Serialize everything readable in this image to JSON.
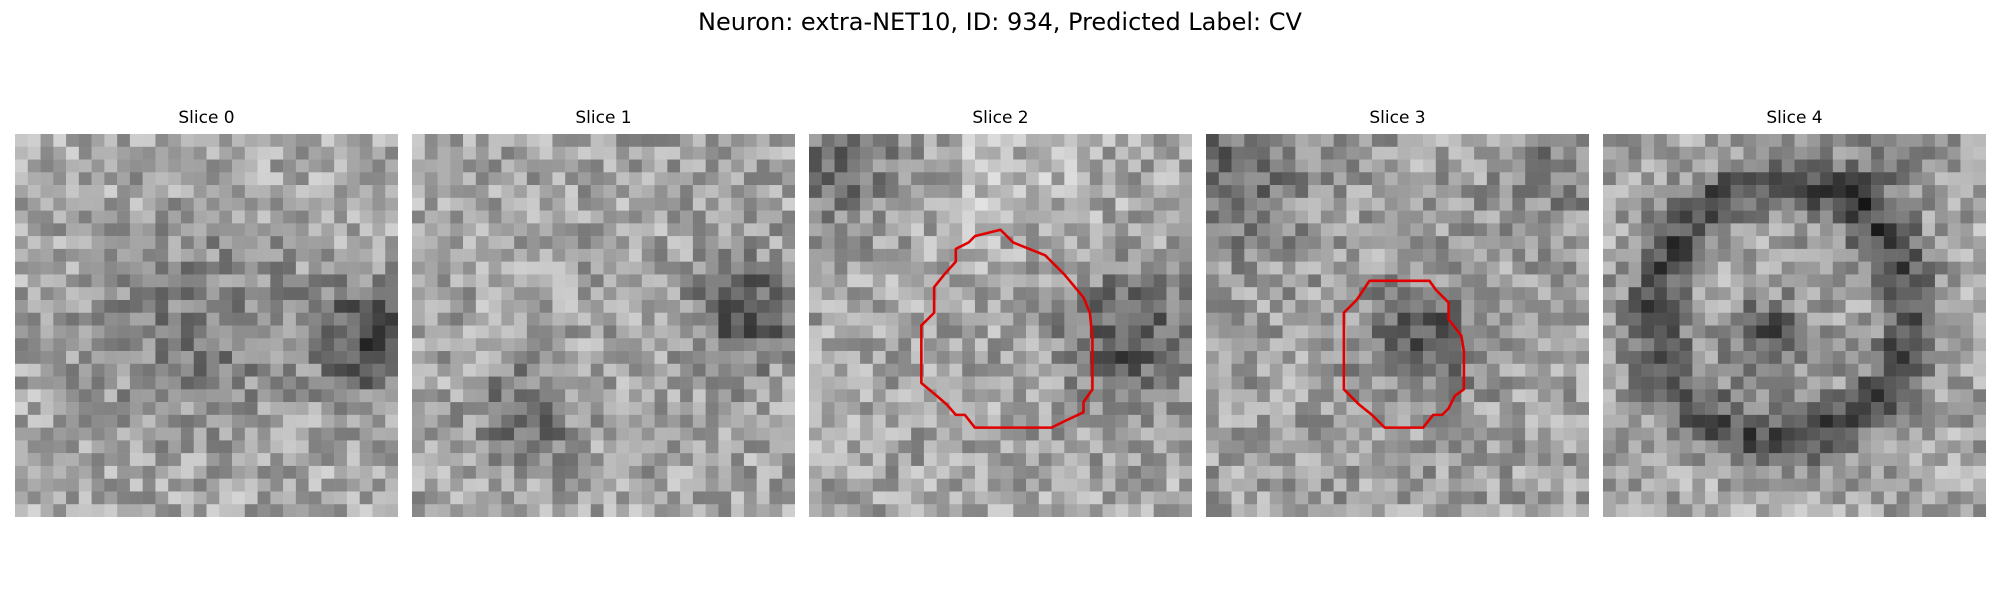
{
  "figure": {
    "title": "Neuron: extra-NET10, ID: 934, Predicted Label: CV"
  },
  "panels": [
    {
      "title": "Slice 0",
      "has_roi": false
    },
    {
      "title": "Slice 1",
      "has_roi": false
    },
    {
      "title": "Slice 2",
      "has_roi": true
    },
    {
      "title": "Slice 3",
      "has_roi": true
    },
    {
      "title": "Slice 4",
      "has_roi": false
    }
  ],
  "colors": {
    "roi_outline": "#e00000",
    "colormap": "gray"
  }
}
